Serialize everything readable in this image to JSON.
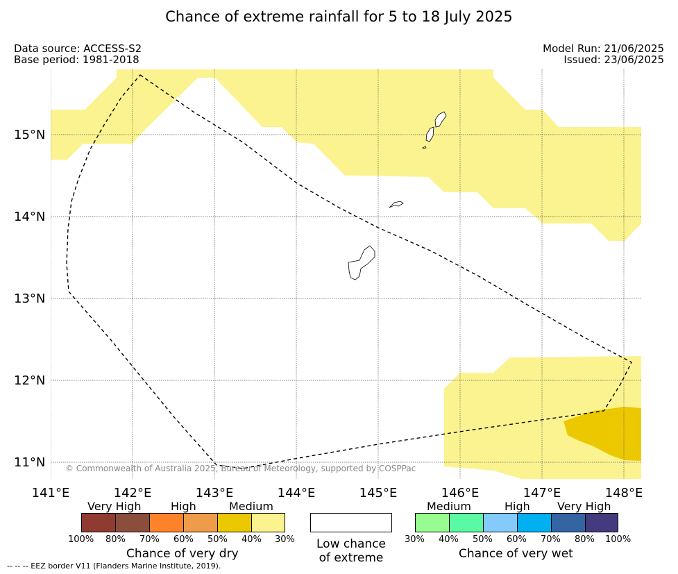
{
  "title": "Chance of extreme rainfall for 5 to 18 July 2025",
  "source": {
    "data_source": "Data source: ACCESS-S2",
    "base_period": "Base period: 1981-2018",
    "model_run": "Model Run: 21/06/2025",
    "issued": "Issued: 23/06/2025"
  },
  "map": {
    "lat_labels": [
      "15°N",
      "14°N",
      "13°N",
      "12°N",
      "11°N"
    ],
    "lon_labels": [
      "141°E",
      "142°E",
      "143°E",
      "144°E",
      "145°E",
      "146°E",
      "147°E",
      "148°E"
    ],
    "copyright": "© Commonwealth of Australia 2025, Bureau of Meteorology, supported by COSPPac",
    "colors": {
      "medium_dry": "#fbf38f",
      "high_dry": "#ecc800",
      "land_outline": "#000000",
      "eez_border": "#000000"
    }
  },
  "legend": {
    "dry": {
      "categories": [
        "Very High",
        "High",
        "Medium"
      ],
      "colors": [
        "#8f3b31",
        "#8b4e3c",
        "#fd832b",
        "#ee9c4a",
        "#ecc800",
        "#fbf38f"
      ],
      "percent_labels": [
        "100%",
        "80%",
        "70%",
        "60%",
        "50%",
        "40%",
        "30%"
      ],
      "title": "Chance of very dry"
    },
    "low": {
      "line1": "Low chance",
      "line2": "of extreme",
      "color": "#ffffff"
    },
    "wet": {
      "categories": [
        "Medium",
        "High",
        "Very High"
      ],
      "colors": [
        "#98fc90",
        "#5af9a4",
        "#84cbfb",
        "#00b0f0",
        "#3564a3",
        "#433b7d"
      ],
      "percent_labels": [
        "30%",
        "40%",
        "50%",
        "60%",
        "70%",
        "80%",
        "100%"
      ],
      "title": "Chance of very wet"
    }
  },
  "footnote": "--  --  -- EEZ border V11 (Flanders Marine Institute, 2019)."
}
